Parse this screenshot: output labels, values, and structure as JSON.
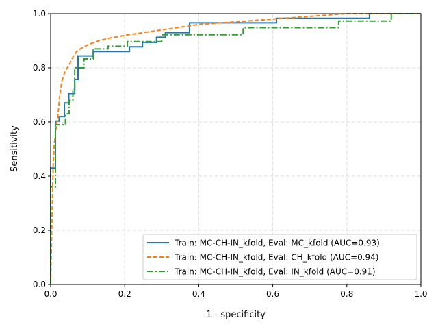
{
  "chart_data": {
    "type": "line",
    "title": "",
    "xlabel": "1 - specificity",
    "ylabel": "Sensitivity",
    "xlim": [
      0,
      1
    ],
    "ylim": [
      0,
      1
    ],
    "xticks": [
      "0.0",
      "0.2",
      "0.4",
      "0.6",
      "0.8",
      "1.0"
    ],
    "yticks": [
      "0.0",
      "0.2",
      "0.4",
      "0.6",
      "0.8",
      "1.0"
    ],
    "grid": true,
    "legend_position": "lower-right",
    "series": [
      {
        "name": "Train: MC-CH-IN_kfold, Eval: MC_kfold (AUC=0.93)",
        "color": "#1f77b4",
        "style": "solid",
        "step": true,
        "x": [
          0,
          0,
          0.013,
          0.013,
          0.023,
          0.023,
          0.037,
          0.037,
          0.049,
          0.049,
          0.065,
          0.065,
          0.074,
          0.074,
          0.115,
          0.115,
          0.213,
          0.213,
          0.248,
          0.248,
          0.286,
          0.286,
          0.31,
          0.31,
          0.375,
          0.375,
          0.61,
          0.61,
          0.861,
          0.861,
          1
        ],
        "y": [
          0,
          0.43,
          0.43,
          0.603,
          0.603,
          0.62,
          0.62,
          0.67,
          0.67,
          0.705,
          0.705,
          0.757,
          0.757,
          0.844,
          0.844,
          0.86,
          0.86,
          0.878,
          0.878,
          0.894,
          0.894,
          0.913,
          0.913,
          0.93,
          0.93,
          0.966,
          0.966,
          0.983,
          0.983,
          1,
          1
        ]
      },
      {
        "name": "Train: MC-CH-IN_kfold, Eval: CH_kfold (AUC=0.94)",
        "color": "#ff7f0e",
        "style": "dashed",
        "step": false,
        "x": [
          0,
          0.003,
          0.007,
          0.01,
          0.015,
          0.02,
          0.025,
          0.03,
          0.04,
          0.05,
          0.06,
          0.07,
          0.08,
          0.1,
          0.13,
          0.16,
          0.2,
          0.3,
          0.4,
          0.5,
          0.6,
          0.7,
          0.8,
          1
        ],
        "y": [
          0,
          0.2,
          0.45,
          0.52,
          0.58,
          0.63,
          0.7,
          0.75,
          0.79,
          0.81,
          0.84,
          0.86,
          0.87,
          0.885,
          0.9,
          0.91,
          0.92,
          0.94,
          0.96,
          0.97,
          0.98,
          0.99,
          1,
          1
        ]
      },
      {
        "name": "Train: MC-CH-IN_kfold, Eval: IN_kfold (AUC=0.91)",
        "color": "#2ca02c",
        "style": "dashdot",
        "step": true,
        "x": [
          0,
          0,
          0.013,
          0.013,
          0.04,
          0.04,
          0.05,
          0.05,
          0.06,
          0.06,
          0.065,
          0.065,
          0.09,
          0.09,
          0.115,
          0.115,
          0.155,
          0.155,
          0.207,
          0.207,
          0.3,
          0.3,
          0.52,
          0.52,
          0.778,
          0.778,
          0.92,
          0.92,
          1
        ],
        "y": [
          0,
          0.36,
          0.36,
          0.59,
          0.59,
          0.63,
          0.63,
          0.68,
          0.68,
          0.72,
          0.72,
          0.8,
          0.8,
          0.833,
          0.833,
          0.87,
          0.87,
          0.88,
          0.88,
          0.897,
          0.897,
          0.922,
          0.922,
          0.948,
          0.948,
          0.973,
          0.973,
          1,
          1
        ]
      }
    ]
  }
}
